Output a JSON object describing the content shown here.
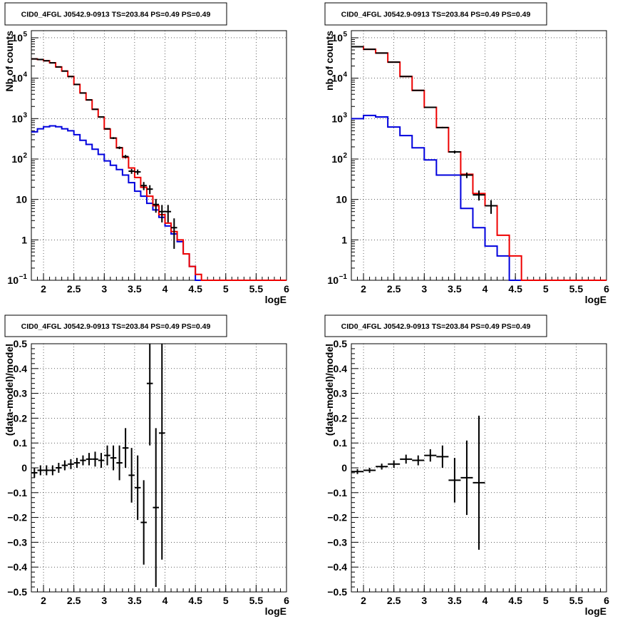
{
  "colors": {
    "data": "#000000",
    "model_red": "#ee0000",
    "model_blue": "#0000dd",
    "grid": "#000000"
  },
  "chart_data": [
    {
      "type": "histogram-log",
      "title": "CID0_4FGL J0542.9-0913 TS=203.84 PS=0.49 PS=0.49",
      "xlabel": "logE",
      "ylabel": "Nb of counts",
      "xlim": [
        1.8,
        6.0
      ],
      "ylim": [
        0.1,
        150000
      ],
      "log_y": true,
      "grid": true,
      "xticks": [
        "2",
        "2.5",
        "3",
        "3.5",
        "4",
        "4.5",
        "5",
        "5.5",
        "6"
      ],
      "yticks": [
        {
          "v": 0.1,
          "m": "10",
          "e": "−1"
        },
        {
          "v": 1,
          "m": "1",
          "e": ""
        },
        {
          "v": 10,
          "m": "10",
          "e": ""
        },
        {
          "v": 100,
          "m": "10",
          "e": "2"
        },
        {
          "v": 1000,
          "m": "10",
          "e": "3"
        },
        {
          "v": 10000,
          "m": "10",
          "e": "4"
        },
        {
          "v": 100000,
          "m": "10",
          "e": "5"
        }
      ],
      "bin_edges": [
        1.8,
        1.9,
        2.0,
        2.1,
        2.2,
        2.3,
        2.4,
        2.5,
        2.6,
        2.7,
        2.8,
        2.9,
        3.0,
        3.1,
        3.2,
        3.3,
        3.4,
        3.5,
        3.6,
        3.7,
        3.8,
        3.9,
        4.0,
        4.1,
        4.2,
        4.3,
        4.4,
        4.5,
        4.6,
        4.7,
        4.8,
        4.9,
        5.0,
        5.1,
        5.2,
        5.3,
        5.4,
        5.5,
        5.6,
        5.7,
        5.8,
        5.9,
        6.0
      ],
      "model_red": [
        30000,
        29000,
        27000,
        24000,
        19000,
        15000,
        11000,
        7000,
        4300,
        2900,
        1700,
        1100,
        550,
        330,
        190,
        110,
        60,
        35,
        20,
        12,
        7,
        4.2,
        2.6,
        1.6,
        1,
        0.45,
        0.22,
        0.14,
        0.06,
        0.06,
        0.06,
        0.06,
        0.06,
        0.06,
        0.06,
        0.06,
        0.06,
        0.06,
        0.06,
        0.06,
        0.06,
        0.06
      ],
      "model_blue": [
        470,
        560,
        630,
        660,
        630,
        560,
        500,
        400,
        290,
        230,
        175,
        130,
        90,
        70,
        55,
        40,
        26,
        16,
        12,
        8,
        5.5,
        3.6,
        2.2,
        1.4,
        0.9,
        0.45,
        0.22,
        0.1,
        0.1,
        0.1,
        0.1,
        0.1,
        0.1,
        0.1,
        0.1,
        0.1,
        0.1,
        0.1,
        0.1,
        0.1,
        0.1,
        0.1
      ],
      "data_points": [
        {
          "x": 1.85,
          "y": 30000,
          "e": 170
        },
        {
          "x": 1.95,
          "y": 29000,
          "e": 170
        },
        {
          "x": 2.05,
          "y": 27000,
          "e": 160
        },
        {
          "x": 2.15,
          "y": 24000,
          "e": 150
        },
        {
          "x": 2.25,
          "y": 19000,
          "e": 140
        },
        {
          "x": 2.35,
          "y": 15000,
          "e": 120
        },
        {
          "x": 2.45,
          "y": 11000,
          "e": 105
        },
        {
          "x": 2.55,
          "y": 7000,
          "e": 85
        },
        {
          "x": 2.65,
          "y": 4300,
          "e": 65
        },
        {
          "x": 2.75,
          "y": 2900,
          "e": 55
        },
        {
          "x": 2.85,
          "y": 1700,
          "e": 40
        },
        {
          "x": 2.95,
          "y": 1100,
          "e": 33
        },
        {
          "x": 3.05,
          "y": 560,
          "e": 24
        },
        {
          "x": 3.15,
          "y": 330,
          "e": 18
        },
        {
          "x": 3.25,
          "y": 190,
          "e": 14
        },
        {
          "x": 3.35,
          "y": 115,
          "e": 11
        },
        {
          "x": 3.45,
          "y": 50,
          "e": 7
        },
        {
          "x": 3.55,
          "y": 48,
          "e": 7
        },
        {
          "x": 3.65,
          "y": 22,
          "e": 5
        },
        {
          "x": 3.75,
          "y": 18,
          "e": 4.5
        },
        {
          "x": 3.85,
          "y": 7.5,
          "e": 2.8
        },
        {
          "x": 3.95,
          "y": 5,
          "e": 2.3
        },
        {
          "x": 4.05,
          "y": 5,
          "e": 2.3
        },
        {
          "x": 4.15,
          "y": 2,
          "e": 1.4
        }
      ]
    },
    {
      "type": "histogram-log",
      "title": "CID0_4FGL J0542.9-0913 TS=203.84 PS=0.49 PS=0.49",
      "xlabel": "logE",
      "ylabel": "nb of counts",
      "xlim": [
        1.8,
        6.0
      ],
      "ylim": [
        0.1,
        150000
      ],
      "log_y": true,
      "grid": true,
      "xticks": [
        "2",
        "2.5",
        "3",
        "3.5",
        "4",
        "4.5",
        "5",
        "5.5",
        "6"
      ],
      "yticks": [
        {
          "v": 0.1,
          "m": "10",
          "e": "−1"
        },
        {
          "v": 1,
          "m": "1",
          "e": ""
        },
        {
          "v": 10,
          "m": "10",
          "e": ""
        },
        {
          "v": 100,
          "m": "10",
          "e": "2"
        },
        {
          "v": 1000,
          "m": "10",
          "e": "3"
        },
        {
          "v": 10000,
          "m": "10",
          "e": "4"
        },
        {
          "v": 100000,
          "m": "10",
          "e": "5"
        }
      ],
      "bin_edges": [
        1.8,
        2.0,
        2.2,
        2.4,
        2.6,
        2.8,
        3.0,
        3.2,
        3.4,
        3.6,
        3.8,
        4.0,
        4.2,
        4.4,
        4.6,
        4.8,
        5.0,
        5.2,
        5.4,
        5.6,
        5.8,
        6.0
      ],
      "model_red": [
        60000,
        52000,
        42000,
        25000,
        11000,
        5000,
        1900,
        600,
        150,
        42,
        14,
        7,
        1.3,
        0.4,
        0.06,
        0.06,
        0.06,
        0.06,
        0.06,
        0.06,
        0.06
      ],
      "model_blue": [
        1000,
        1200,
        1100,
        620,
        380,
        190,
        95,
        40,
        40,
        6,
        2,
        0.7,
        0.4,
        0.1,
        0.1,
        0.1,
        0.1,
        0.1,
        0.1,
        0.1,
        0.1
      ],
      "data_points": [
        {
          "x": 1.9,
          "y": 60000,
          "e": 250
        },
        {
          "x": 2.1,
          "y": 52000,
          "e": 230
        },
        {
          "x": 2.3,
          "y": 42000,
          "e": 200
        },
        {
          "x": 2.5,
          "y": 25000,
          "e": 160
        },
        {
          "x": 2.7,
          "y": 11000,
          "e": 105
        },
        {
          "x": 2.9,
          "y": 5000,
          "e": 70
        },
        {
          "x": 3.1,
          "y": 1900,
          "e": 44
        },
        {
          "x": 3.3,
          "y": 600,
          "e": 25
        },
        {
          "x": 3.5,
          "y": 150,
          "e": 12
        },
        {
          "x": 3.7,
          "y": 40,
          "e": 6.3
        },
        {
          "x": 3.9,
          "y": 13,
          "e": 3.6
        },
        {
          "x": 4.1,
          "y": 7,
          "e": 2.6
        }
      ]
    },
    {
      "type": "scatter-errorbars",
      "title": "CID0_4FGL J0542.9-0913 TS=203.84 PS=0.49 PS=0.49",
      "xlabel": "logE",
      "ylabel": "(data-model)/model",
      "xlim": [
        1.8,
        6.0
      ],
      "ylim": [
        -0.5,
        0.5
      ],
      "log_y": false,
      "grid": true,
      "xticks": [
        "2",
        "2.5",
        "3",
        "3.5",
        "4",
        "4.5",
        "5",
        "5.5",
        "6"
      ],
      "yticks": [
        "−0.5",
        "−0.4",
        "−0.3",
        "−0.2",
        "−0.1",
        "0",
        "0.1",
        "0.2",
        "0.3",
        "0.4",
        "0.5"
      ],
      "bin_width": 0.1,
      "data_points": [
        {
          "x": 1.85,
          "y": -0.02,
          "lo": 0.02,
          "hi": 0.02
        },
        {
          "x": 1.95,
          "y": -0.01,
          "lo": 0.02,
          "hi": 0.02
        },
        {
          "x": 2.05,
          "y": -0.01,
          "lo": 0.02,
          "hi": 0.02
        },
        {
          "x": 2.15,
          "y": -0.01,
          "lo": 0.02,
          "hi": 0.02
        },
        {
          "x": 2.25,
          "y": 0.0,
          "lo": 0.02,
          "hi": 0.02
        },
        {
          "x": 2.35,
          "y": 0.01,
          "lo": 0.02,
          "hi": 0.02
        },
        {
          "x": 2.45,
          "y": 0.015,
          "lo": 0.02,
          "hi": 0.02
        },
        {
          "x": 2.55,
          "y": 0.02,
          "lo": 0.02,
          "hi": 0.02
        },
        {
          "x": 2.65,
          "y": 0.03,
          "lo": 0.02,
          "hi": 0.02
        },
        {
          "x": 2.75,
          "y": 0.035,
          "lo": 0.025,
          "hi": 0.025
        },
        {
          "x": 2.85,
          "y": 0.035,
          "lo": 0.03,
          "hi": 0.03
        },
        {
          "x": 2.95,
          "y": 0.03,
          "lo": 0.03,
          "hi": 0.03
        },
        {
          "x": 3.05,
          "y": 0.05,
          "lo": 0.04,
          "hi": 0.04
        },
        {
          "x": 3.15,
          "y": 0.04,
          "lo": 0.05,
          "hi": 0.05
        },
        {
          "x": 3.25,
          "y": 0.02,
          "lo": 0.07,
          "hi": 0.07
        },
        {
          "x": 3.35,
          "y": 0.08,
          "lo": 0.08,
          "hi": 0.08
        },
        {
          "x": 3.45,
          "y": -0.03,
          "lo": 0.11,
          "hi": 0.11
        },
        {
          "x": 3.55,
          "y": -0.08,
          "lo": 0.13,
          "hi": 0.13
        },
        {
          "x": 3.65,
          "y": -0.22,
          "lo": 0.17,
          "hi": 0.17
        },
        {
          "x": 3.75,
          "y": 0.34,
          "lo": 0.25,
          "hi": 0.25
        },
        {
          "x": 3.85,
          "y": -0.16,
          "lo": 0.32,
          "hi": 0.32
        },
        {
          "x": 3.95,
          "y": 0.14,
          "lo": 0.51,
          "hi": 0.51
        }
      ]
    },
    {
      "type": "scatter-errorbars",
      "title": "CID0_4FGL J0542.9-0913 TS=203.84 PS=0.49 PS=0.49",
      "xlabel": "logE",
      "ylabel": "(data-model)/model",
      "xlim": [
        1.8,
        6.0
      ],
      "ylim": [
        -0.5,
        0.5
      ],
      "log_y": false,
      "grid": true,
      "xticks": [
        "2",
        "2.5",
        "3",
        "3.5",
        "4",
        "4.5",
        "5",
        "5.5",
        "6"
      ],
      "yticks": [
        "−0.5",
        "−0.4",
        "−0.3",
        "−0.2",
        "−0.1",
        "0",
        "0.1",
        "0.2",
        "0.3",
        "0.4",
        "0.5"
      ],
      "bin_width": 0.2,
      "data_points": [
        {
          "x": 1.9,
          "y": -0.015,
          "lo": 0.01,
          "hi": 0.01
        },
        {
          "x": 2.1,
          "y": -0.01,
          "lo": 0.01,
          "hi": 0.01
        },
        {
          "x": 2.3,
          "y": 0.005,
          "lo": 0.012,
          "hi": 0.012
        },
        {
          "x": 2.5,
          "y": 0.015,
          "lo": 0.015,
          "hi": 0.015
        },
        {
          "x": 2.7,
          "y": 0.035,
          "lo": 0.018,
          "hi": 0.018
        },
        {
          "x": 2.9,
          "y": 0.03,
          "lo": 0.02,
          "hi": 0.02
        },
        {
          "x": 3.1,
          "y": 0.05,
          "lo": 0.025,
          "hi": 0.025
        },
        {
          "x": 3.3,
          "y": 0.045,
          "lo": 0.045,
          "hi": 0.045
        },
        {
          "x": 3.5,
          "y": -0.05,
          "lo": 0.09,
          "hi": 0.09
        },
        {
          "x": 3.7,
          "y": -0.04,
          "lo": 0.15,
          "hi": 0.15
        },
        {
          "x": 3.9,
          "y": -0.06,
          "lo": 0.27,
          "hi": 0.27
        }
      ]
    }
  ]
}
